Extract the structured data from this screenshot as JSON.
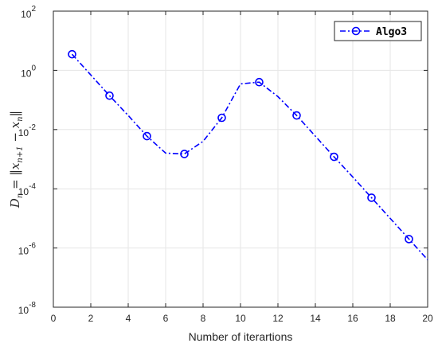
{
  "chart_data": {
    "type": "line",
    "xlabel": "Number of iterartions",
    "ylabel": "D_n = ||x_{n+1} − x_n||",
    "ylabel_parts": {
      "lhs": "D",
      "lhs_sub": "n",
      "eq": " = ‖",
      "x1": "x",
      "x1_sub": "n+1",
      "minus": " − ",
      "x2": "x",
      "x2_sub": "n",
      "end": "‖"
    },
    "xlim": [
      0,
      20
    ],
    "ylim_log10": [
      -8,
      2
    ],
    "yscale": "log",
    "grid": true,
    "legend_position": "top-right",
    "xticks": [
      "0",
      "2",
      "4",
      "6",
      "8",
      "10",
      "12",
      "14",
      "16",
      "18",
      "20"
    ],
    "yticks": [
      {
        "base": "10",
        "exp": "2"
      },
      {
        "base": "10",
        "exp": "0"
      },
      {
        "base": "10",
        "exp": "-2"
      },
      {
        "base": "10",
        "exp": "-4"
      },
      {
        "base": "10",
        "exp": "-6"
      },
      {
        "base": "10",
        "exp": "-8"
      }
    ],
    "series": [
      {
        "name": "Algo3",
        "color": "#0000ff",
        "line_style": "dash-dot",
        "marker": "circle",
        "marker_every_other": true,
        "x": [
          1,
          2,
          3,
          4,
          5,
          6,
          7,
          8,
          9,
          10,
          11,
          12,
          13,
          14,
          15,
          16,
          17,
          18,
          19,
          20
        ],
        "y": [
          3.5,
          0.7,
          0.14,
          0.03,
          0.006,
          0.0016,
          0.0015,
          0.004,
          0.025,
          0.35,
          0.4,
          0.13,
          0.03,
          0.006,
          0.0012,
          0.00025,
          5e-05,
          1e-05,
          2e-06,
          4e-07
        ]
      }
    ]
  }
}
